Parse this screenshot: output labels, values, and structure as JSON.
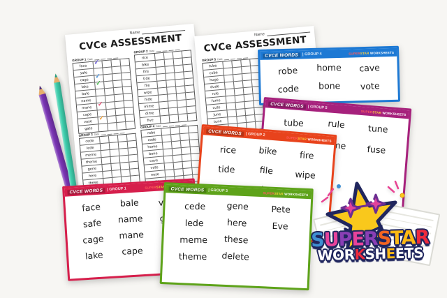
{
  "background_color": "#f7f6f3",
  "worksheet1": {
    "name_label": "Name",
    "title": "CVCe ASSESSMENT",
    "tables": [
      {
        "group_label": "GROUP 1",
        "date_label": "Date",
        "words": [
          "face",
          "safe",
          "cage",
          "lake",
          "bale",
          "name",
          "mane",
          "cape",
          "vase",
          "gate"
        ],
        "checks": [
          {
            "row": 0,
            "color": "#6a5bd8"
          },
          {
            "row": 2,
            "color": "#4a90d8"
          },
          {
            "row": 3,
            "color": "#46b84c"
          },
          {
            "row": 6,
            "color": "#e8486e"
          },
          {
            "row": 8,
            "color": "#f2a33c"
          }
        ]
      },
      {
        "group_label": "GROUP 2",
        "date_label": "Date",
        "words": [
          "rice",
          "bike",
          "fire",
          "tide",
          "file",
          "wipe",
          "hide",
          "mime",
          "dime",
          "five"
        ],
        "checks": []
      },
      {
        "group_label": "GROUP 3",
        "date_label": "Date",
        "words": [
          "cede",
          "lede",
          "meme",
          "theme",
          "gene",
          "here",
          "these",
          "delete",
          "Pete",
          "Eve"
        ],
        "checks": []
      },
      {
        "group_label": "GROUP 4",
        "date_label": "Date",
        "words": [
          "robe",
          "code",
          "home",
          "bone",
          "cave",
          "vote",
          "nose",
          "rope",
          "note",
          "hole"
        ],
        "checks": []
      }
    ]
  },
  "worksheet2": {
    "name_label": "Name",
    "title": "CVCe ASSESSMENT",
    "tables": [
      {
        "group_label": "GROUP 5",
        "date_label": "Date",
        "words": [
          "tube",
          "cube",
          "huge",
          "dude",
          "rule",
          "fume",
          "cute",
          "June",
          "tune",
          "fuse"
        ],
        "checks": []
      }
    ]
  },
  "cards": [
    {
      "key": "blue",
      "accent": "#1d79d4",
      "header": "CVCE WORDS",
      "group_tag": "| GROUP 4",
      "words": [
        [
          "robe",
          "home",
          "cave"
        ],
        [
          "code",
          "bone",
          "vote"
        ]
      ]
    },
    {
      "key": "magenta",
      "accent": "#a6217c",
      "header": "CVCE WORDS",
      "group_tag": "| GROUP 5",
      "words": [
        [
          "tube",
          "rule",
          "tune"
        ],
        [
          "cube",
          "fume",
          "fuse"
        ]
      ]
    },
    {
      "key": "orange",
      "accent": "#e8431c",
      "header": "CVCE WORDS",
      "group_tag": "| GROUP 2",
      "words": [
        [
          "rice",
          "bike",
          "fire"
        ],
        [
          "tide",
          "file",
          "wipe"
        ],
        [
          "hide",
          "mime",
          ""
        ]
      ]
    },
    {
      "key": "green",
      "accent": "#5ea31a",
      "header": "CVCE WORDS",
      "group_tag": "| GROUP 3",
      "words": [
        [
          "cede",
          "gene",
          "Pete"
        ],
        [
          "lede",
          "here",
          "Eve"
        ],
        [
          "meme",
          "these",
          ""
        ],
        [
          "theme",
          "delete",
          ""
        ]
      ]
    },
    {
      "key": "crimson",
      "accent": "#d61f4c",
      "header": "CVCE WORDS",
      "group_tag": "| GROUP 1",
      "words": [
        [
          "face",
          "bale",
          "vase"
        ],
        [
          "safe",
          "name",
          "gate"
        ],
        [
          "cage",
          "mane",
          ""
        ],
        [
          "lake",
          "cape",
          ""
        ]
      ]
    }
  ],
  "brand_small": [
    {
      "text": "SUPER",
      "color": "#ff5c5c"
    },
    {
      "text": "STAR",
      "color": "#ffd23e"
    },
    {
      "text": " WORKSHEETS",
      "color": "#ffffff"
    }
  ],
  "logo": {
    "line1": [
      {
        "ch": "S",
        "color": "#3f8fd2"
      },
      {
        "ch": "U",
        "color": "#e8439b"
      },
      {
        "ch": "P",
        "color": "#8a3fb5"
      },
      {
        "ch": "E",
        "color": "#e8439b"
      },
      {
        "ch": "R",
        "color": "#8a3fb5"
      },
      {
        "ch": "S",
        "color": "#f26522"
      },
      {
        "ch": "T",
        "color": "#fdb913"
      },
      {
        "ch": "A",
        "color": "#fdb913"
      },
      {
        "ch": "R",
        "color": "#ed2a3d"
      }
    ],
    "line2": [
      {
        "ch": "W",
        "color": "#ffffff"
      },
      {
        "ch": "O",
        "color": "#ffffff"
      },
      {
        "ch": "R",
        "color": "#ffffff"
      },
      {
        "ch": "K",
        "color": "#ed2a3d"
      },
      {
        "ch": "S",
        "color": "#ffffff"
      },
      {
        "ch": "H",
        "color": "#ffffff"
      },
      {
        "ch": "E",
        "color": "#fdb913"
      },
      {
        "ch": "E",
        "color": "#ffffff"
      },
      {
        "ch": "T",
        "color": "#ffffff"
      },
      {
        "ch": "S",
        "color": "#ffffff"
      }
    ],
    "outline_color": "#20265e",
    "star_color": "#f9c81c",
    "glasses_color": "#e1439b"
  },
  "pencils": [
    {
      "name": "purple-pencil",
      "color": "#7a35b5",
      "lead": "#4a2d7f"
    },
    {
      "name": "teal-pencil",
      "color": "#3ecfad",
      "lead": "#1f9e84"
    }
  ],
  "check_glyph": "✓"
}
